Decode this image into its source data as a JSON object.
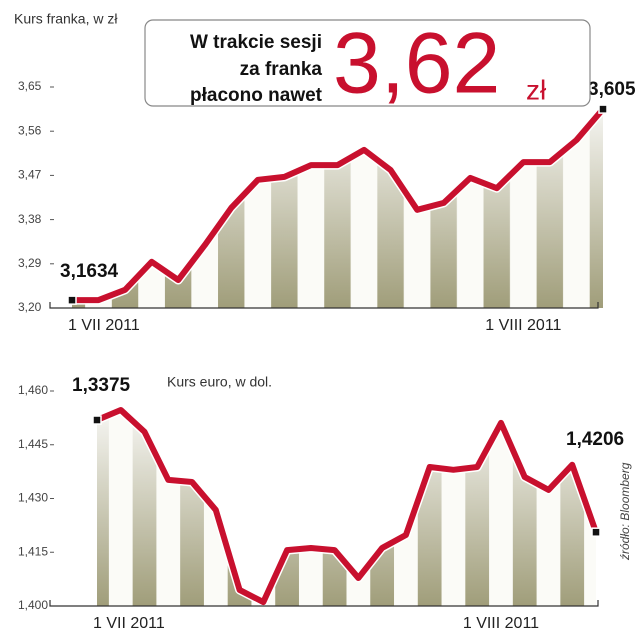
{
  "chart_data": [
    {
      "type": "line",
      "title": "Kurs franka, w zł",
      "categories": [
        "1 VII 2011",
        null,
        null,
        null,
        null,
        null,
        null,
        null,
        null,
        null,
        null,
        null,
        null,
        null,
        null,
        null,
        null,
        "1 VIII 2011",
        null,
        null,
        null
      ],
      "series": [
        {
          "color": "#c8102e",
          "values": [
            3.216,
            3.216,
            3.237,
            3.294,
            3.257,
            3.328,
            3.404,
            3.461,
            3.467,
            3.491,
            3.491,
            3.522,
            3.481,
            3.4,
            3.414,
            3.465,
            3.444,
            3.497,
            3.497,
            3.542,
            3.605
          ]
        }
      ],
      "annotations": [
        "3,1634",
        "3,605"
      ],
      "ylim": [
        3.2,
        3.65
      ],
      "yticks": [
        {
          "value": 3.2,
          "label": "3,20"
        },
        {
          "value": 3.29,
          "label": "3,29"
        },
        {
          "value": 3.38,
          "label": "3,38"
        },
        {
          "value": 3.47,
          "label": "3,47"
        },
        {
          "value": 3.56,
          "label": "3,56"
        },
        {
          "value": 3.65,
          "label": "3,65"
        }
      ]
    },
    {
      "type": "line",
      "title": "Kurs euro, w dol.",
      "categories": [
        "1 VII 2011",
        null,
        null,
        null,
        null,
        null,
        null,
        null,
        null,
        null,
        null,
        null,
        null,
        null,
        null,
        null,
        null,
        "1 VIII 2011",
        null,
        null,
        null,
        null
      ],
      "series": [
        {
          "color": "#c8102e",
          "values": [
            1.4519,
            1.4547,
            1.4486,
            1.4352,
            1.4346,
            1.4268,
            1.4045,
            1.4011,
            1.4156,
            1.4162,
            1.4156,
            1.4078,
            1.4162,
            1.4198,
            1.4388,
            1.438,
            1.4388,
            1.4511,
            1.436,
            1.4324,
            1.4394,
            1.4206
          ]
        }
      ],
      "annotations": [
        "1,3375",
        "1,4206"
      ],
      "ylim": [
        1.4,
        1.46
      ],
      "yticks": [
        {
          "value": 1.4,
          "label": "1,400"
        },
        {
          "value": 1.415,
          "label": "1,415"
        },
        {
          "value": 1.43,
          "label": "1,430"
        },
        {
          "value": 1.445,
          "label": "1,445"
        },
        {
          "value": 1.46,
          "label": "1,460"
        }
      ]
    }
  ],
  "callout": {
    "lines": [
      "W trakcie sesji",
      "za franka",
      "płacono nawet"
    ],
    "value": "3,62",
    "unit": "zł"
  },
  "source": "źródło: Bloomberg"
}
